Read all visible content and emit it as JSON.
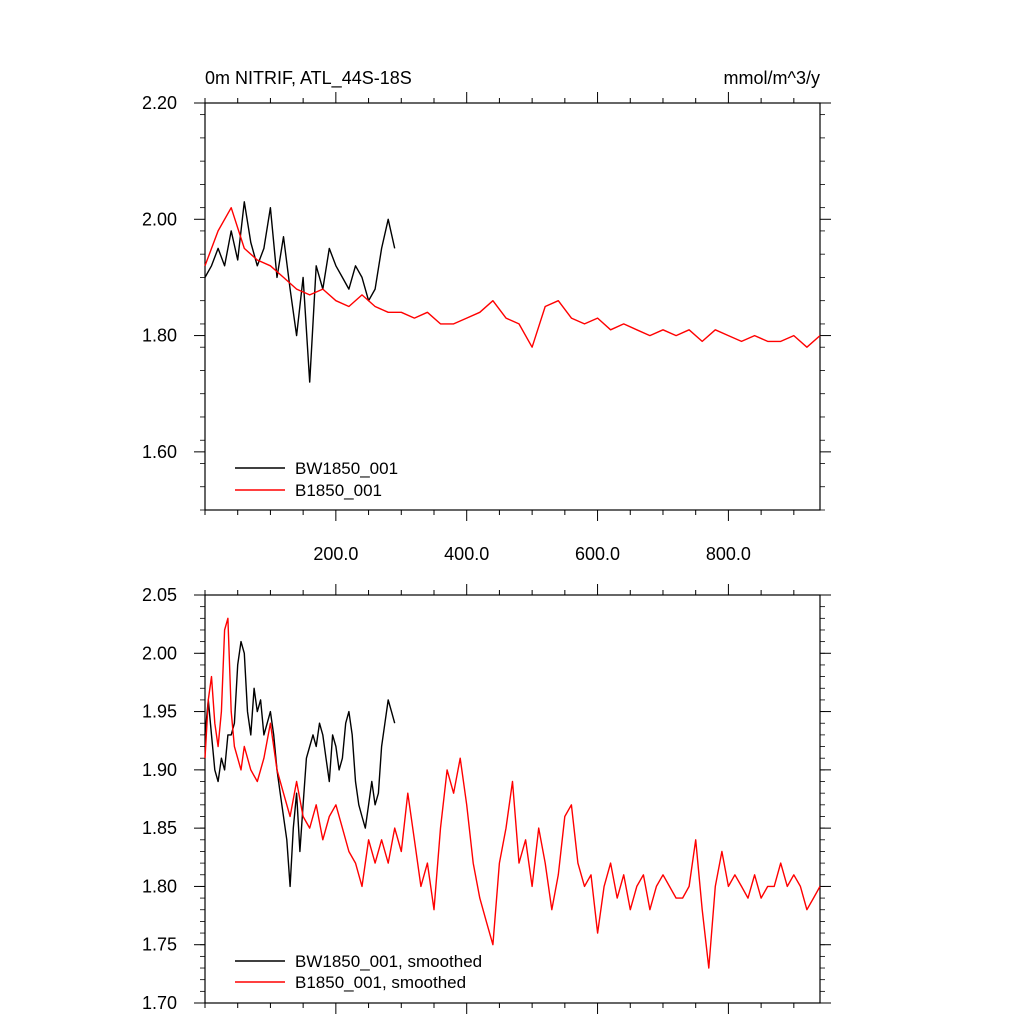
{
  "chart_data": [
    {
      "type": "line",
      "title": "0m NITRIF, ATL_44S-18S",
      "units": "mmol/m^3/y",
      "xlim": [
        0,
        940
      ],
      "ylim": [
        1.5,
        2.2
      ],
      "x_ticks": [
        200,
        400,
        600,
        800
      ],
      "x_tick_labels": [
        "200.0",
        "400.0",
        "600.0",
        "800.0"
      ],
      "y_ticks": [
        1.6,
        1.8,
        2.0,
        2.2
      ],
      "y_tick_labels": [
        "1.60",
        "1.80",
        "2.00",
        "2.20"
      ],
      "grid": false,
      "legend_position": "bottom-left",
      "series": [
        {
          "name": "BW1850_001",
          "color": "#000000",
          "x": [
            0,
            10,
            20,
            30,
            40,
            50,
            60,
            70,
            80,
            90,
            100,
            110,
            120,
            130,
            140,
            150,
            160,
            170,
            180,
            190,
            200,
            210,
            220,
            230,
            240,
            250,
            260,
            270,
            280,
            290
          ],
          "values": [
            1.9,
            1.92,
            1.95,
            1.92,
            1.98,
            1.93,
            2.03,
            1.96,
            1.92,
            1.95,
            2.02,
            1.9,
            1.97,
            1.88,
            1.8,
            1.9,
            1.72,
            1.92,
            1.88,
            1.95,
            1.92,
            1.9,
            1.88,
            1.92,
            1.9,
            1.86,
            1.88,
            1.95,
            2.0,
            1.95
          ]
        },
        {
          "name": "B1850_001",
          "color": "#ff0000",
          "x": [
            0,
            20,
            40,
            60,
            80,
            100,
            120,
            140,
            160,
            180,
            200,
            220,
            240,
            260,
            280,
            300,
            320,
            340,
            360,
            380,
            400,
            420,
            440,
            460,
            480,
            500,
            520,
            540,
            560,
            580,
            600,
            620,
            640,
            660,
            680,
            700,
            720,
            740,
            760,
            780,
            800,
            820,
            840,
            860,
            880,
            900,
            920,
            940
          ],
          "values": [
            1.92,
            1.98,
            2.02,
            1.95,
            1.93,
            1.92,
            1.9,
            1.88,
            1.87,
            1.88,
            1.86,
            1.85,
            1.87,
            1.85,
            1.84,
            1.84,
            1.83,
            1.84,
            1.82,
            1.82,
            1.83,
            1.84,
            1.86,
            1.83,
            1.82,
            1.78,
            1.85,
            1.86,
            1.83,
            1.82,
            1.83,
            1.81,
            1.82,
            1.81,
            1.8,
            1.81,
            1.8,
            1.81,
            1.79,
            1.81,
            1.8,
            1.79,
            1.8,
            1.79,
            1.79,
            1.8,
            1.78,
            1.8
          ]
        }
      ]
    },
    {
      "type": "line",
      "title": "",
      "xlim": [
        0,
        940
      ],
      "ylim": [
        1.7,
        2.05
      ],
      "y_ticks": [
        1.7,
        1.75,
        1.8,
        1.85,
        1.9,
        1.95,
        2.0,
        2.05
      ],
      "y_tick_labels": [
        "1.70",
        "1.75",
        "1.80",
        "1.85",
        "1.90",
        "1.95",
        "2.00",
        "2.05"
      ],
      "grid": false,
      "legend_position": "bottom-left",
      "series": [
        {
          "name": "BW1850_001, smoothed",
          "color": "#000000",
          "x": [
            0,
            5,
            10,
            15,
            20,
            25,
            30,
            35,
            40,
            45,
            50,
            55,
            60,
            65,
            70,
            75,
            80,
            85,
            90,
            95,
            100,
            105,
            110,
            115,
            120,
            125,
            130,
            135,
            140,
            145,
            150,
            155,
            160,
            165,
            170,
            175,
            180,
            185,
            190,
            195,
            200,
            205,
            210,
            215,
            220,
            225,
            230,
            235,
            240,
            245,
            250,
            255,
            260,
            265,
            270,
            275,
            280,
            285,
            290
          ],
          "values": [
            1.93,
            1.96,
            1.93,
            1.9,
            1.89,
            1.91,
            1.9,
            1.93,
            1.93,
            1.94,
            1.99,
            2.01,
            2.0,
            1.95,
            1.93,
            1.97,
            1.95,
            1.96,
            1.93,
            1.94,
            1.95,
            1.93,
            1.9,
            1.88,
            1.86,
            1.84,
            1.8,
            1.85,
            1.88,
            1.83,
            1.87,
            1.91,
            1.92,
            1.93,
            1.92,
            1.94,
            1.93,
            1.91,
            1.89,
            1.93,
            1.92,
            1.9,
            1.91,
            1.94,
            1.95,
            1.93,
            1.89,
            1.87,
            1.86,
            1.85,
            1.87,
            1.89,
            1.87,
            1.88,
            1.92,
            1.94,
            1.96,
            1.95,
            1.94
          ]
        },
        {
          "name": "B1850_001, smoothed",
          "color": "#ff0000",
          "x": [
            0,
            5,
            10,
            15,
            20,
            25,
            30,
            35,
            40,
            45,
            50,
            55,
            60,
            70,
            80,
            90,
            100,
            110,
            120,
            130,
            140,
            150,
            160,
            170,
            180,
            190,
            200,
            210,
            220,
            230,
            240,
            250,
            260,
            270,
            280,
            290,
            300,
            310,
            320,
            330,
            340,
            350,
            360,
            370,
            380,
            390,
            400,
            410,
            420,
            430,
            440,
            450,
            460,
            470,
            480,
            490,
            500,
            510,
            520,
            530,
            540,
            550,
            560,
            570,
            580,
            590,
            600,
            610,
            620,
            630,
            640,
            650,
            660,
            670,
            680,
            690,
            700,
            710,
            720,
            730,
            740,
            750,
            760,
            770,
            780,
            790,
            800,
            810,
            820,
            830,
            840,
            850,
            860,
            870,
            880,
            890,
            900,
            910,
            920,
            930,
            940
          ],
          "values": [
            1.91,
            1.96,
            1.98,
            1.94,
            1.92,
            1.95,
            2.02,
            2.03,
            1.95,
            1.92,
            1.91,
            1.9,
            1.92,
            1.9,
            1.89,
            1.91,
            1.94,
            1.9,
            1.88,
            1.86,
            1.89,
            1.86,
            1.85,
            1.87,
            1.84,
            1.86,
            1.87,
            1.85,
            1.83,
            1.82,
            1.8,
            1.84,
            1.82,
            1.84,
            1.82,
            1.85,
            1.83,
            1.88,
            1.84,
            1.8,
            1.82,
            1.78,
            1.85,
            1.9,
            1.88,
            1.91,
            1.87,
            1.82,
            1.79,
            1.77,
            1.75,
            1.82,
            1.85,
            1.89,
            1.82,
            1.84,
            1.8,
            1.85,
            1.82,
            1.78,
            1.81,
            1.86,
            1.87,
            1.82,
            1.8,
            1.81,
            1.76,
            1.8,
            1.82,
            1.79,
            1.81,
            1.78,
            1.8,
            1.81,
            1.78,
            1.8,
            1.81,
            1.8,
            1.79,
            1.79,
            1.8,
            1.84,
            1.78,
            1.73,
            1.8,
            1.83,
            1.8,
            1.81,
            1.8,
            1.79,
            1.81,
            1.79,
            1.8,
            1.8,
            1.82,
            1.8,
            1.81,
            1.8,
            1.78,
            1.79,
            1.8
          ]
        }
      ]
    }
  ]
}
